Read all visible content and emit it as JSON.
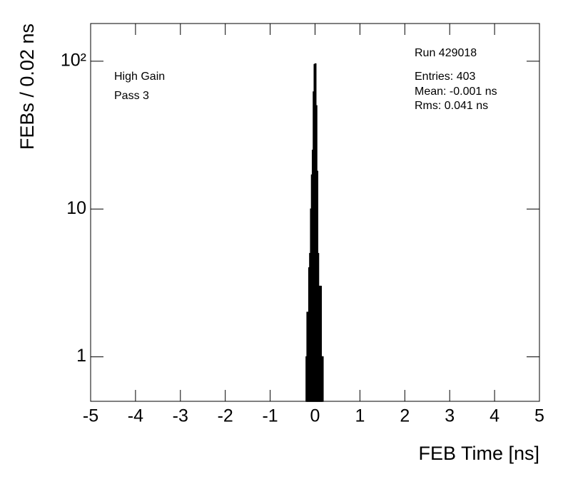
{
  "chart_data": {
    "type": "histogram",
    "xlabel": "FEB Time [ns]",
    "ylabel": "FEBs / 0.02 ns",
    "annotations": [
      "High Gain",
      "Pass 3"
    ],
    "stats": [
      "Run 429018",
      "Entries: 403",
      "Mean: -0.001 ns",
      "Rms: 0.041 ns"
    ],
    "bins": [
      -0.2,
      -0.18,
      -0.16,
      -0.14,
      -0.12,
      -0.1,
      -0.08,
      -0.06,
      -0.04,
      -0.02,
      0,
      0.02,
      0.04,
      0.06,
      0.08,
      0.1,
      0.12,
      0.14,
      0.16,
      0.18
    ],
    "values": [
      1,
      2,
      2,
      4,
      5,
      10,
      17,
      25,
      62,
      95,
      96,
      50,
      18,
      5,
      3,
      3,
      3,
      1,
      1
    ],
    "color": "#000000",
    "xlim": [
      -5,
      5
    ],
    "xticks": [
      -5,
      -4,
      -3,
      -2,
      -1,
      0,
      1,
      2,
      3,
      4,
      5
    ],
    "ylim": [
      0.5,
      180
    ],
    "yticks": [
      1,
      10,
      {
        "value": 100,
        "label": "10²"
      }
    ],
    "log_y": true,
    "grid": false
  }
}
